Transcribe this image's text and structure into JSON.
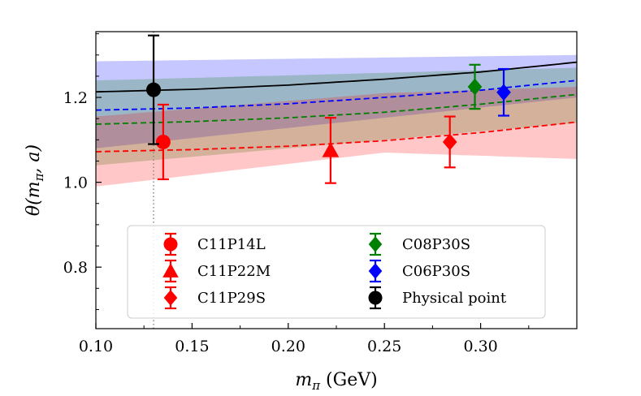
{
  "chart_data": {
    "type": "scatter",
    "xlabel_symbol": "m",
    "xlabel_sub": "π",
    "xlabel_unit": " (GeV)",
    "ylabel_text": "θ(m",
    "ylabel_sub": "π",
    "ylabel_tail": ", a)",
    "xlim": [
      0.1,
      0.35
    ],
    "ylim": [
      0.655,
      1.355
    ],
    "x_ticks": [
      0.1,
      0.15,
      0.2,
      0.25,
      0.3
    ],
    "x_tick_labels": [
      "0.10",
      "0.15",
      "0.20",
      "0.25",
      "0.30"
    ],
    "y_ticks": [
      0.8,
      1.0,
      1.2
    ],
    "y_tick_labels": [
      "0.8",
      "1.0",
      "1.2"
    ],
    "physical_line_x": 0.13,
    "bands": [
      {
        "color": "#0000ff",
        "x": [
          0.1,
          0.35
        ],
        "lower": [
          1.08,
          1.2
        ],
        "upper": [
          1.285,
          1.3
        ]
      },
      {
        "color": "#008000",
        "x": [
          0.1,
          0.35
        ],
        "lower": [
          1.04,
          1.14
        ],
        "upper": [
          1.24,
          1.27
        ]
      },
      {
        "color": "#ff0000",
        "x": [
          0.1,
          0.25,
          0.35
        ],
        "lower": [
          0.99,
          1.07,
          1.055
        ],
        "upper": [
          1.155,
          1.21,
          1.225
        ]
      }
    ],
    "fit_lines": [
      {
        "color": "#000000",
        "dashed": false,
        "x": [
          0.1,
          0.15,
          0.2,
          0.25,
          0.3,
          0.35
        ],
        "y": [
          1.213,
          1.219,
          1.229,
          1.243,
          1.26,
          1.283
        ]
      },
      {
        "color": "#0000ff",
        "dashed": true,
        "x": [
          0.1,
          0.15,
          0.2,
          0.25,
          0.3,
          0.35
        ],
        "y": [
          1.17,
          1.175,
          1.185,
          1.2,
          1.217,
          1.24
        ]
      },
      {
        "color": "#008000",
        "dashed": true,
        "x": [
          0.1,
          0.15,
          0.2,
          0.25,
          0.3,
          0.35
        ],
        "y": [
          1.137,
          1.143,
          1.152,
          1.165,
          1.184,
          1.207
        ]
      },
      {
        "color": "#ff0000",
        "dashed": true,
        "x": [
          0.1,
          0.15,
          0.2,
          0.25,
          0.3,
          0.35
        ],
        "y": [
          1.072,
          1.077,
          1.085,
          1.098,
          1.117,
          1.142
        ]
      }
    ],
    "series": [
      {
        "name": "C11P14L",
        "marker": "circle",
        "color": "#ff0000",
        "x": 0.135,
        "y": 1.095,
        "err": 0.088
      },
      {
        "name": "C11P22M",
        "marker": "triangle",
        "color": "#ff0000",
        "x": 0.222,
        "y": 1.075,
        "err": 0.077
      },
      {
        "name": "C11P29S",
        "marker": "diamond",
        "color": "#ff0000",
        "x": 0.284,
        "y": 1.095,
        "err": 0.06
      },
      {
        "name": "C08P30S",
        "marker": "diamond",
        "color": "#008000",
        "x": 0.297,
        "y": 1.225,
        "err": 0.052
      },
      {
        "name": "C06P30S",
        "marker": "diamond",
        "color": "#0000ff",
        "x": 0.312,
        "y": 1.212,
        "err": 0.055
      },
      {
        "name": "Physical point",
        "marker": "circle",
        "color": "#000000",
        "x": 0.13,
        "y": 1.218,
        "err": 0.128
      }
    ],
    "legend": {
      "placement": "lower center",
      "columns": 2
    }
  }
}
